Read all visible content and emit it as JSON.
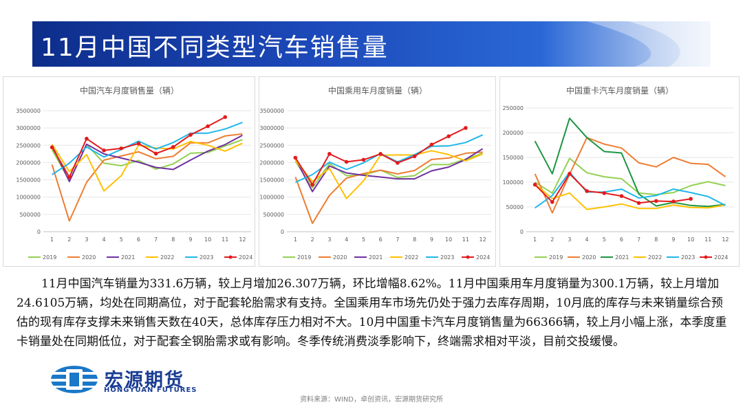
{
  "title": "11月中国不同类型汽车销售量",
  "colors": {
    "2019": "#92d050",
    "2020": "#ed7d31",
    "2021": "#7030a0",
    "2022": "#ffc000",
    "2023": "#1fb7ea",
    "2024": "#e31a1c",
    "重卡2021": "#1a9641"
  },
  "paragraph": "11月中国汽车销量为331.6万辆，较上月增加26.307万辆，环比增幅8.62%。11月中国乘用车月度销量为300.1万辆，较上月增加24.6105万辆，均处在同期高位，对于配套轮胎需求有支持。全国乘用车市场先仍处于强力去库存周期，10月底的库存与未来销量综合预估的现有库存支撑未来销售天数在40天，总体库存压力相对不大。10月中国重卡汽车月度销售量为66366辆，较上月小幅上涨，本季度重卡销量处在同期低位，对于配套全钢胎需求或有影响。冬季传统消费淡季影响下，终端需求相对平淡，目前交投缓慢。",
  "logo": {
    "cn": "宏源期货",
    "en": "HONGYUAN FUTURES"
  },
  "source": "资料来源：WIND，卓创资讯，宏源期货研究所",
  "chart_data": [
    {
      "type": "line",
      "title": "中国汽车月度销售量（辆）",
      "categories": [
        "1",
        "2",
        "3",
        "4",
        "5",
        "6",
        "7",
        "8",
        "9",
        "10",
        "11",
        "12"
      ],
      "ylim": [
        0,
        3500000
      ],
      "yticks": [
        "0",
        "500000",
        "1000000",
        "1500000",
        "2000000",
        "2500000",
        "3000000",
        "3500000"
      ],
      "series": [
        {
          "name": "2019",
          "values": [
            2370000,
            1480000,
            2520000,
            1980000,
            1910000,
            2060000,
            1810000,
            1960000,
            2270000,
            2290000,
            2480000,
            2660000
          ]
        },
        {
          "name": "2020",
          "values": [
            1940000,
            310000,
            1430000,
            2070000,
            2190000,
            2310000,
            2110000,
            2180000,
            2570000,
            2570000,
            2770000,
            2830000
          ]
        },
        {
          "name": "2021",
          "values": [
            2500000,
            1450000,
            2530000,
            2250000,
            2130000,
            2010000,
            1860000,
            1800000,
            2070000,
            2330000,
            2520000,
            2790000
          ]
        },
        {
          "name": "2022",
          "values": [
            2530000,
            1740000,
            2230000,
            1180000,
            1620000,
            2500000,
            2420000,
            2390000,
            2610000,
            2500000,
            2330000,
            2560000
          ]
        },
        {
          "name": "2023",
          "values": [
            1650000,
            1980000,
            2450000,
            2160000,
            2380000,
            2620000,
            2390000,
            2580000,
            2850000,
            2850000,
            2970000,
            3160000
          ]
        },
        {
          "name": "2024",
          "values": [
            2440000,
            1580000,
            2690000,
            2350000,
            2410000,
            2550000,
            2260000,
            2450000,
            2800000,
            3050000,
            3316000,
            null
          ]
        }
      ]
    },
    {
      "type": "line",
      "title": "中国乘用车月度销量（辆）",
      "categories": [
        "1",
        "2",
        "3",
        "4",
        "5",
        "6",
        "7",
        "8",
        "9",
        "10",
        "11",
        "12"
      ],
      "ylim": [
        0,
        3500000
      ],
      "yticks": [
        "0",
        "500000",
        "1000000",
        "1500000",
        "2000000",
        "2500000",
        "3000000",
        "3500000"
      ],
      "series": [
        {
          "name": "2019",
          "values": [
            2040000,
            1270000,
            1970000,
            1620000,
            1640000,
            1780000,
            1570000,
            1620000,
            1940000,
            1940000,
            2100000,
            2270000
          ]
        },
        {
          "name": "2020",
          "values": [
            1580000,
            240000,
            1050000,
            1550000,
            1680000,
            1780000,
            1670000,
            1770000,
            2090000,
            2130000,
            2270000,
            2300000
          ]
        },
        {
          "name": "2021",
          "values": [
            2120000,
            1160000,
            1900000,
            1700000,
            1630000,
            1580000,
            1530000,
            1530000,
            1760000,
            1870000,
            2090000,
            2400000
          ]
        },
        {
          "name": "2022",
          "values": [
            2070000,
            1450000,
            1830000,
            960000,
            1470000,
            2210000,
            2220000,
            2220000,
            2340000,
            2230000,
            2050000,
            2250000
          ]
        },
        {
          "name": "2023",
          "values": [
            1430000,
            1650000,
            2010000,
            1800000,
            1990000,
            2260000,
            2020000,
            2230000,
            2470000,
            2480000,
            2580000,
            2800000
          ]
        },
        {
          "name": "2024",
          "values": [
            2140000,
            1360000,
            2250000,
            2020000,
            2080000,
            2250000,
            1990000,
            2180000,
            2520000,
            2760000,
            3001000,
            null
          ]
        }
      ]
    },
    {
      "type": "line",
      "title": "中国重卡汽车月度销量（辆）",
      "categories": [
        "1",
        "2",
        "3",
        "4",
        "5",
        "6",
        "7",
        "8",
        "9",
        "10",
        "11",
        "12"
      ],
      "ylim": [
        0,
        250000
      ],
      "yticks": [
        "0",
        "50000",
        "100000",
        "150000",
        "200000",
        "250000"
      ],
      "series": [
        {
          "name": "2019",
          "values": [
            100000,
            78000,
            148000,
            119000,
            111000,
            107000,
            78000,
            75000,
            79000,
            93000,
            101000,
            93000
          ]
        },
        {
          "name": "2020",
          "values": [
            117000,
            38000,
            116000,
            190000,
            177000,
            169000,
            139000,
            131000,
            150000,
            138000,
            136000,
            111000
          ]
        },
        {
          "name": "2021",
          "values": [
            183000,
            117000,
            229000,
            190000,
            162000,
            159000,
            76000,
            52000,
            59000,
            53000,
            51000,
            55000
          ]
        },
        {
          "name": "2022",
          "values": [
            96000,
            67000,
            78000,
            45000,
            50000,
            56000,
            47000,
            47000,
            54000,
            49000,
            48000,
            54000
          ]
        },
        {
          "name": "2023",
          "values": [
            48000,
            73000,
            120000,
            80000,
            80000,
            86000,
            68000,
            73000,
            86000,
            79000,
            71000,
            53000
          ]
        },
        {
          "name": "2024",
          "values": [
            95000,
            60000,
            117000,
            82000,
            78000,
            72000,
            58000,
            62000,
            61000,
            66366,
            null,
            null
          ]
        }
      ]
    }
  ]
}
